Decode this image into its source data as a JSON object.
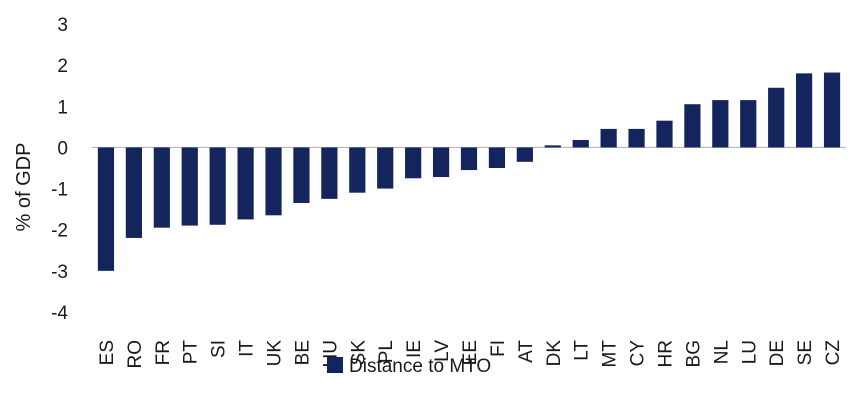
{
  "chart_data": {
    "type": "bar",
    "ylabel": "% of GDP",
    "xlabel": "",
    "ylim": [
      -4,
      3
    ],
    "yticks": [
      3,
      2,
      1,
      0,
      -1,
      -2,
      -3,
      -4
    ],
    "grid": false,
    "legend_position": "bottom",
    "bar_color": "#14245c",
    "categories": [
      "ES",
      "RO",
      "FR",
      "PT",
      "SI",
      "IT",
      "UK",
      "BE",
      "HU",
      "SK",
      "PL",
      "IE",
      "LV",
      "EE",
      "FI",
      "AT",
      "DK",
      "LT",
      "MT",
      "CY",
      "HR",
      "BG",
      "NL",
      "LU",
      "DE",
      "SE",
      "CZ"
    ],
    "series": [
      {
        "name": "Distance to MTO",
        "values": [
          -3.0,
          -2.2,
          -1.95,
          -1.9,
          -1.88,
          -1.75,
          -1.65,
          -1.35,
          -1.25,
          -1.1,
          -1.0,
          -0.75,
          -0.72,
          -0.55,
          -0.5,
          -0.35,
          0.05,
          0.18,
          0.45,
          0.45,
          0.65,
          1.05,
          1.15,
          1.15,
          1.45,
          1.8,
          1.82
        ]
      }
    ]
  }
}
